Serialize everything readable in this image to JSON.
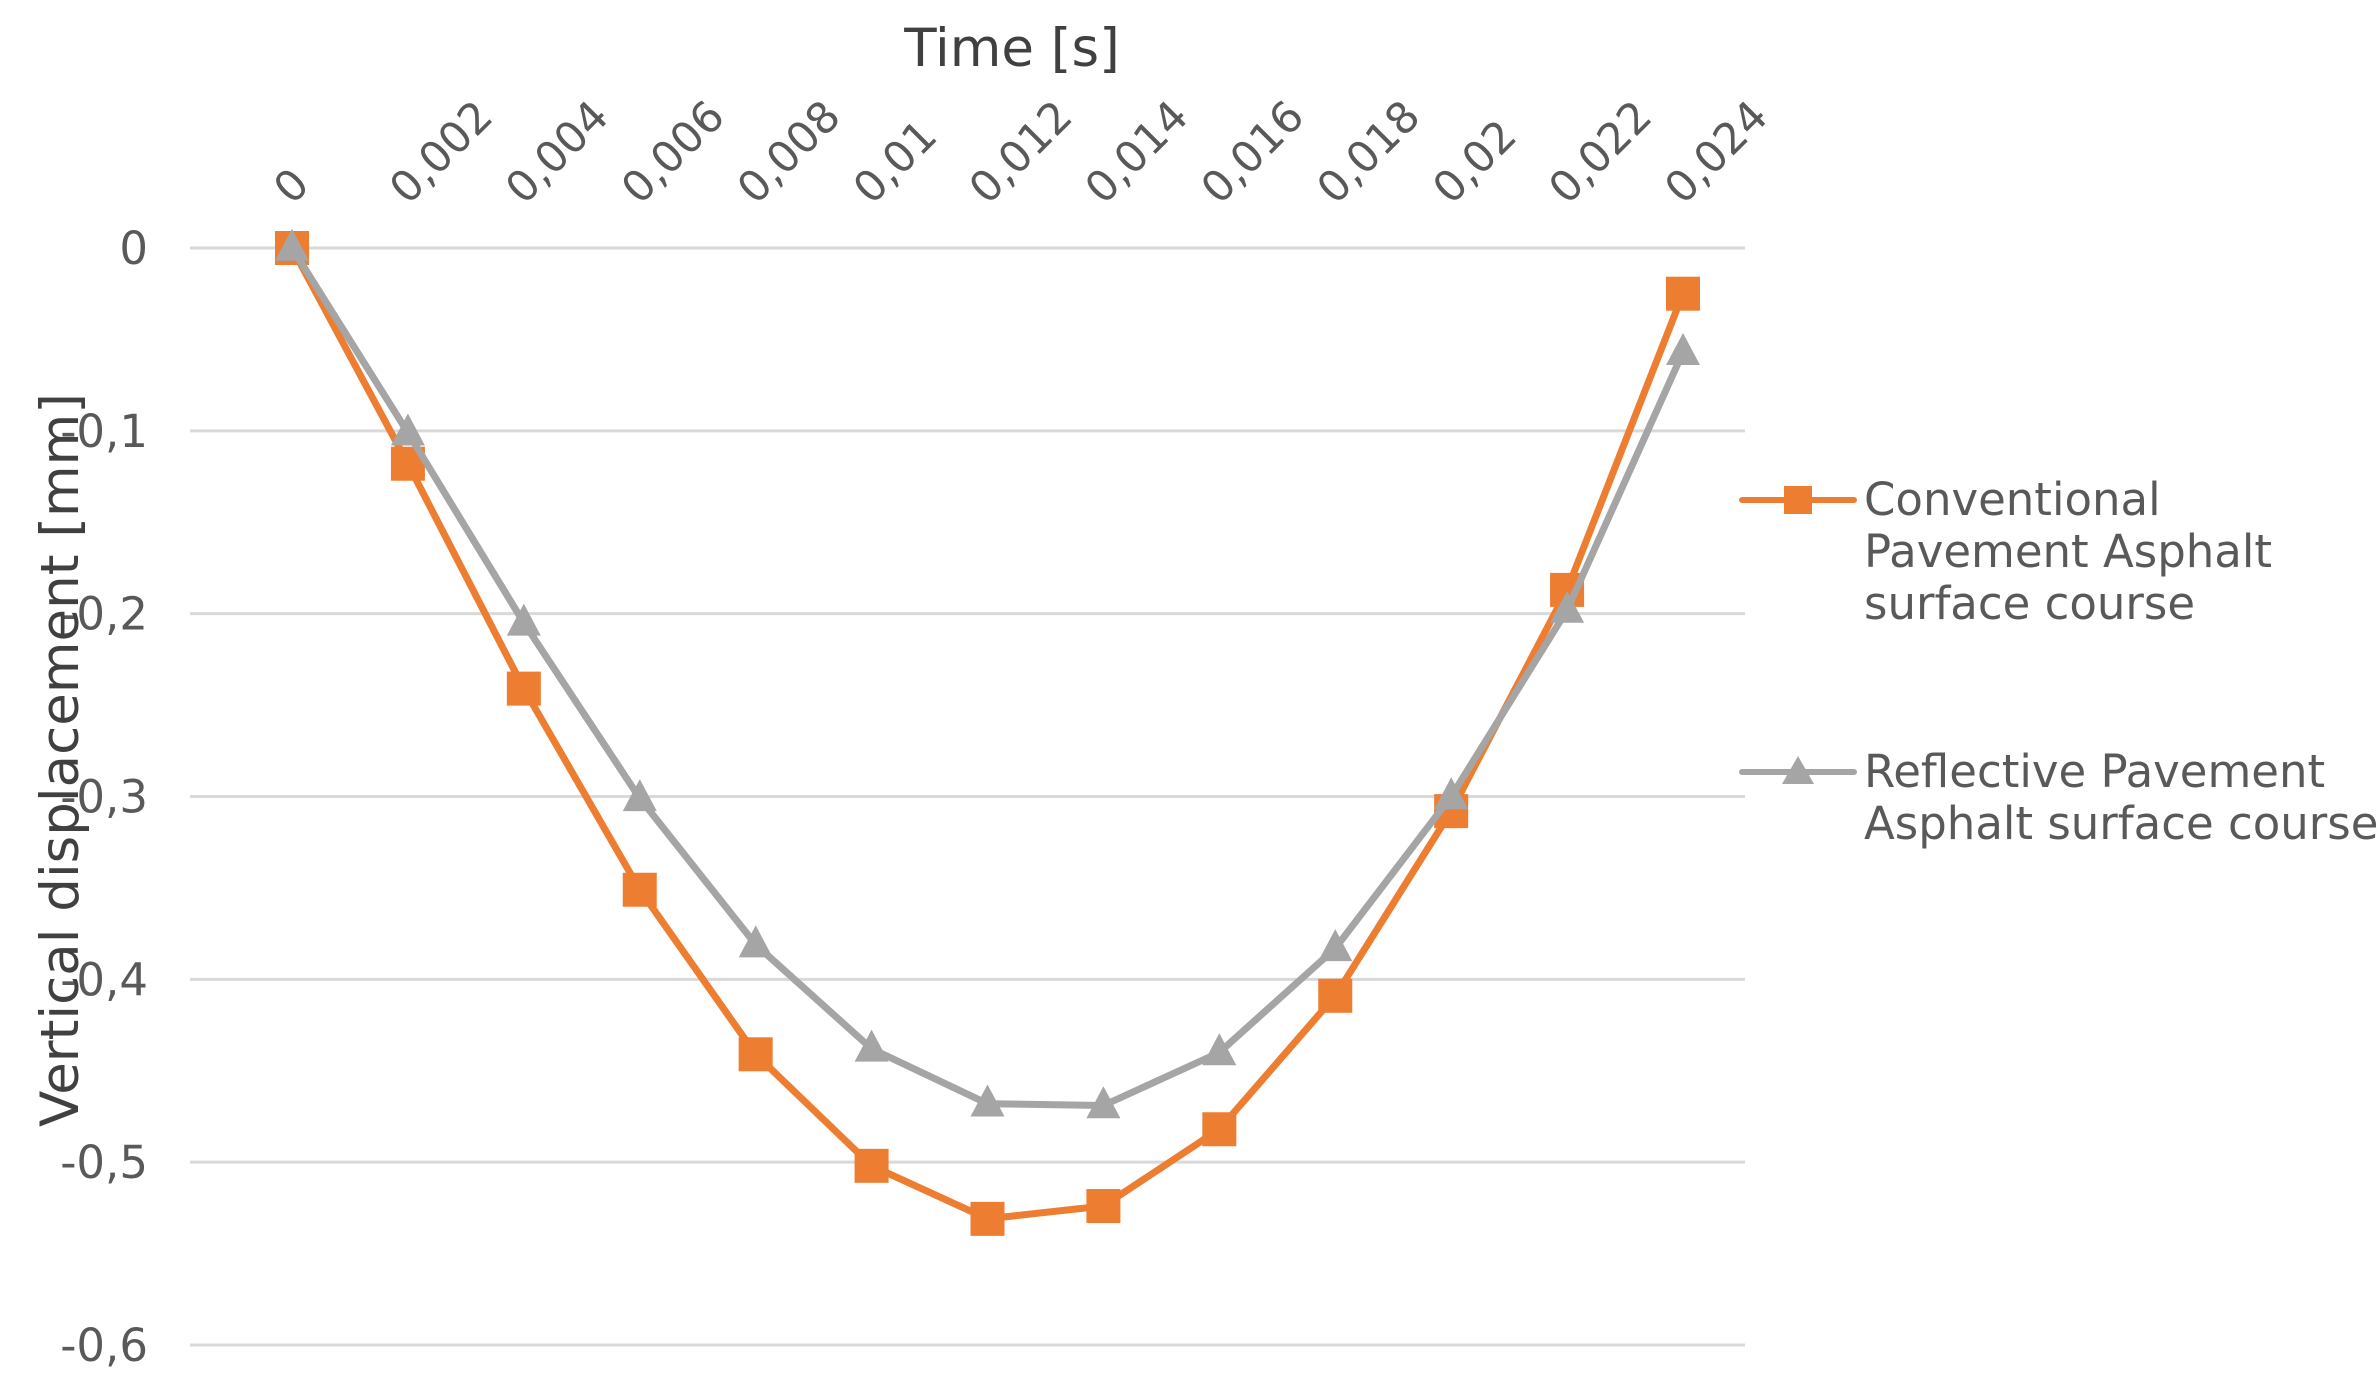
{
  "chart_data": {
    "type": "line",
    "title": "",
    "xlabel": "Time [s]",
    "ylabel": "Vertical displacement [mm]",
    "x_axis_position": "top",
    "x_ticks": [
      "0",
      "0,002",
      "0,004",
      "0,006",
      "0,008",
      "0,01",
      "0,012",
      "0,014",
      "0,016",
      "0,018",
      "0,02",
      "0,022",
      "0,024"
    ],
    "y_ticks": [
      "0",
      "-0,1",
      "-0,2",
      "-0,3",
      "-0,4",
      "-0,5",
      "-0,6"
    ],
    "ylim": [
      -0.6,
      0
    ],
    "grid": true,
    "legend_position": "right",
    "series": [
      {
        "name": "Conventional Pavement  Asphalt surface course",
        "color": "#ED7D31",
        "marker": "square",
        "values": [
          0,
          -0.118,
          -0.241,
          -0.351,
          -0.441,
          -0.502,
          -0.531,
          -0.524,
          -0.482,
          -0.409,
          -0.308,
          -0.187,
          -0.025
        ]
      },
      {
        "name": "Reflective Pavement Asphalt surface course",
        "color": "#A5A5A5",
        "marker": "triangle",
        "values": [
          0,
          -0.101,
          -0.205,
          -0.301,
          -0.381,
          -0.438,
          -0.468,
          -0.469,
          -0.44,
          -0.383,
          -0.3,
          -0.198,
          -0.057
        ]
      }
    ],
    "colors": {
      "grid": "#D9D9D9",
      "text": "#595959",
      "axis_title": "#404040"
    }
  }
}
